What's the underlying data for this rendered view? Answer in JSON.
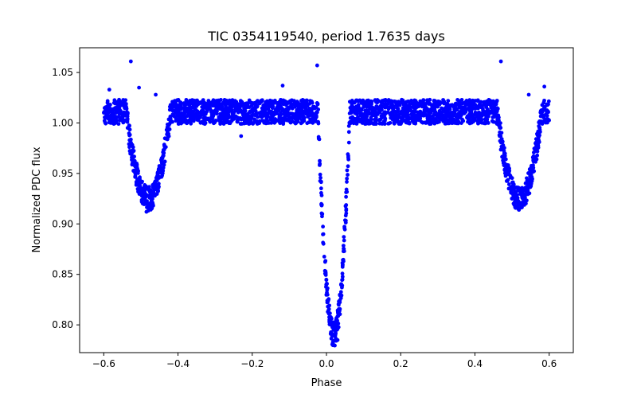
{
  "chart_data": {
    "type": "scatter",
    "title": "TIC 0354119540, period 1.7635 days",
    "xlabel": "Phase",
    "ylabel": "Normalized PDC flux",
    "xlim": [
      -0.665,
      0.665
    ],
    "ylim": [
      0.7725,
      1.0745
    ],
    "xticks": [
      -0.6,
      -0.4,
      -0.2,
      0.0,
      0.2,
      0.4,
      0.6
    ],
    "xtick_labels": [
      "−0.6",
      "−0.4",
      "−0.2",
      "0.0",
      "0.2",
      "0.4",
      "0.6"
    ],
    "yticks": [
      0.8,
      0.85,
      0.9,
      0.95,
      1.0,
      1.05
    ],
    "ytick_labels": [
      "0.80",
      "0.85",
      "0.90",
      "0.95",
      "1.00",
      "1.05"
    ],
    "grid": false,
    "marker_color": "#0000ff",
    "series": [
      {
        "baseline": 1.011,
        "scatter": 0.012,
        "phase_range": [
          -0.6,
          0.6
        ],
        "eclipses": [
          {
            "center_phase": 0.02,
            "min_flux": 0.79,
            "half_width": 0.043
          },
          {
            "center_phase": -0.48,
            "min_flux": 0.925,
            "half_width": 0.06
          },
          {
            "center_phase": 0.52,
            "min_flux": 0.925,
            "half_width": 0.06
          }
        ],
        "outliers": [
          {
            "x": -0.527,
            "y": 1.061
          },
          {
            "x": 0.47,
            "y": 1.061
          },
          {
            "x": -0.025,
            "y": 1.057
          },
          {
            "x": -0.118,
            "y": 1.037
          },
          {
            "x": -0.585,
            "y": 1.033
          },
          {
            "x": -0.505,
            "y": 1.035
          },
          {
            "x": 0.587,
            "y": 1.036
          },
          {
            "x": -0.46,
            "y": 1.028
          },
          {
            "x": 0.545,
            "y": 1.028
          },
          {
            "x": -0.23,
            "y": 0.987
          },
          {
            "x": -0.485,
            "y": 0.912
          },
          {
            "x": 0.515,
            "y": 0.918
          },
          {
            "x": 0.03,
            "y": 0.785
          }
        ]
      }
    ]
  }
}
